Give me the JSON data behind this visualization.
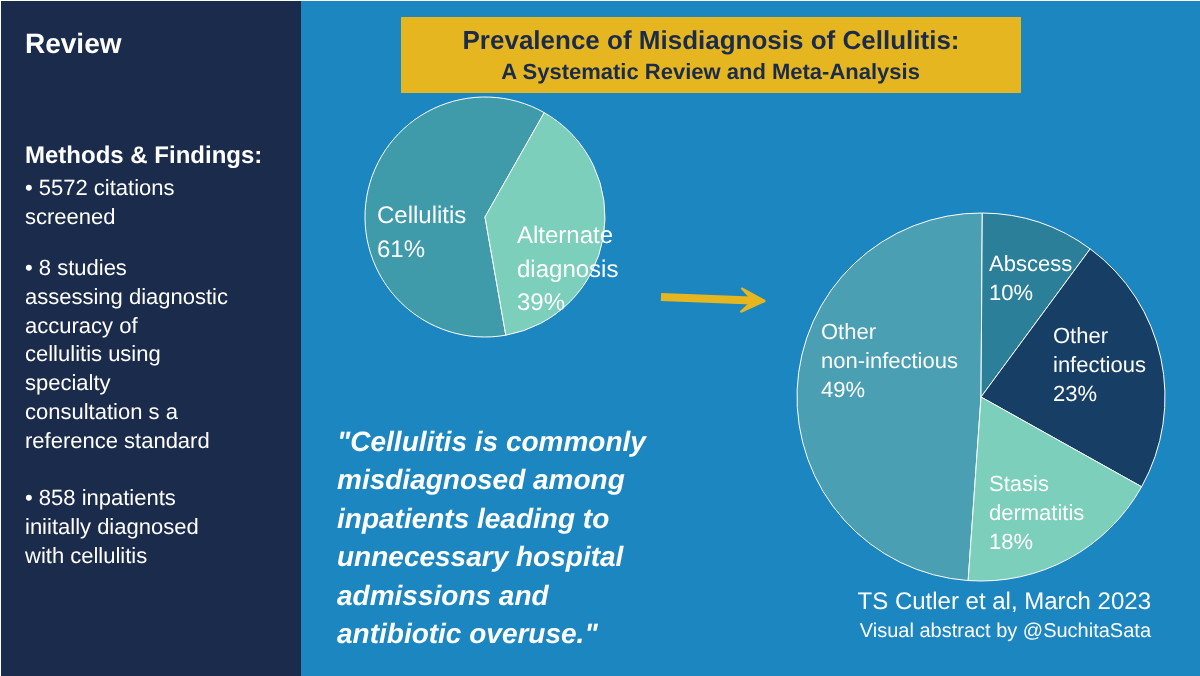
{
  "chart_data": [
    {
      "type": "pie",
      "title": "Prevalence of Misdiagnosis of Cellulitis:",
      "subtitle": "A Systematic Review and Meta-Analysis",
      "categories": [
        "Cellulitis",
        "Alternate diagnosis"
      ],
      "values": [
        61,
        39
      ],
      "colors": [
        "#3f9aaa",
        "#7ccfba"
      ],
      "value_labels": [
        "61%",
        "39%"
      ],
      "annotations": [
        "Review",
        "Methods & Findings:",
        "• 5572 citations screened",
        "• 8 studies assessing diagnostic accuracy of cellulitis using specialty consultation s a reference standard",
        "• 858 inpatients iniitally diagnosed with cellulitis",
        "\"Cellulitis is commonly misdiagnosed among inpatients leading to unnecessary hospital admissions and antibiotic overuse.\""
      ]
    },
    {
      "type": "pie",
      "categories": [
        "Other non-infectious",
        "Abscess",
        "Other infectious",
        "Stasis dermatitis"
      ],
      "values": [
        49,
        10,
        23,
        18
      ],
      "colors": [
        "#4a9fb2",
        "#2b7f99",
        "#173f66",
        "#7ccfba"
      ],
      "value_labels": [
        "49%",
        "10%",
        "23%",
        "18%"
      ],
      "annotations": [
        "TS Cutler et al, March 2023",
        "Visual abstract by @SuchitaSata"
      ]
    }
  ]
}
